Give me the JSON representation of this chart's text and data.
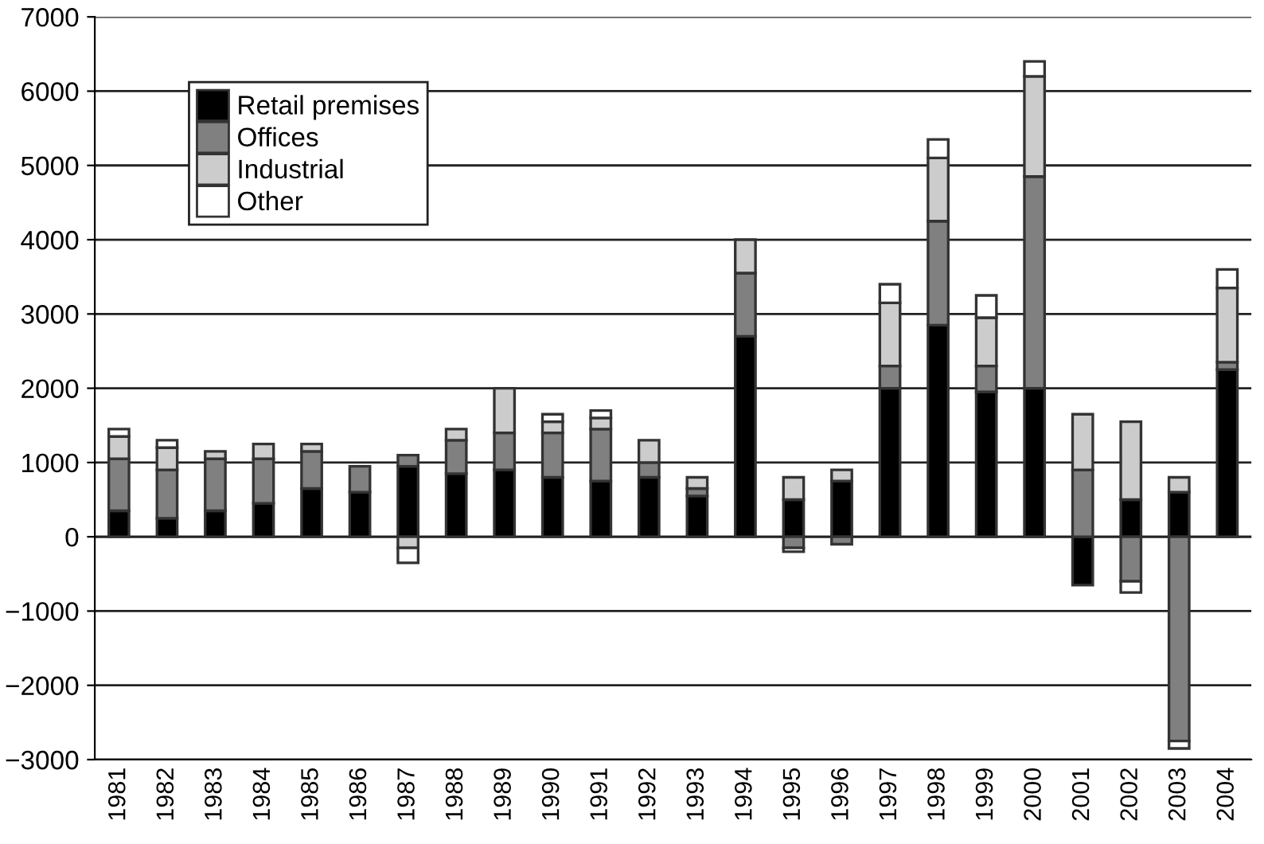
{
  "chart_data": {
    "type": "bar",
    "stacked": true,
    "categories": [
      "1981",
      "1982",
      "1983",
      "1984",
      "1985",
      "1986",
      "1987",
      "1988",
      "1989",
      "1990",
      "1991",
      "1992",
      "1993",
      "1994",
      "1995",
      "1996",
      "1997",
      "1998",
      "1999",
      "2000",
      "2001",
      "2002",
      "2003",
      "2004"
    ],
    "series": [
      {
        "name": "Retail premises",
        "color": "#000000",
        "values": [
          350,
          250,
          350,
          450,
          650,
          600,
          950,
          850,
          900,
          800,
          750,
          800,
          550,
          2700,
          500,
          750,
          2000,
          2850,
          1950,
          2000,
          -650,
          500,
          600,
          2250
        ]
      },
      {
        "name": "Offices",
        "color": "#808080",
        "values": [
          700,
          650,
          700,
          600,
          500,
          350,
          150,
          450,
          500,
          600,
          700,
          200,
          100,
          850,
          -150,
          -100,
          300,
          1400,
          350,
          2850,
          900,
          -600,
          -2750,
          100
        ]
      },
      {
        "name": "Industrial",
        "color": "#cccccc",
        "values": [
          300,
          300,
          100,
          200,
          100,
          null,
          -150,
          150,
          600,
          150,
          150,
          300,
          150,
          450,
          300,
          150,
          850,
          850,
          650,
          1350,
          750,
          1050,
          200,
          1000
        ]
      },
      {
        "name": "Other",
        "color": "#ffffff",
        "values": [
          100,
          100,
          null,
          null,
          null,
          null,
          -200,
          null,
          null,
          100,
          100,
          null,
          null,
          null,
          -50,
          null,
          250,
          250,
          300,
          200,
          null,
          -150,
          -100,
          250
        ]
      }
    ],
    "ylim": [
      -3000,
      7000
    ],
    "yticks": [
      {
        "value": -3000,
        "label": "−3000"
      },
      {
        "value": -2000,
        "label": "−2000"
      },
      {
        "value": -1000,
        "label": "−1000"
      },
      0,
      1000,
      2000,
      3000,
      4000,
      5000,
      6000,
      7000
    ],
    "grid": "y",
    "legend": "top left"
  }
}
